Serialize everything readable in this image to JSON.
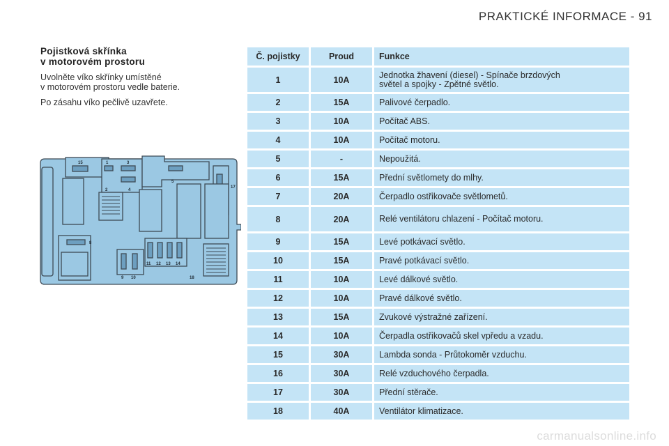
{
  "page": {
    "header": "PRAKTICKÉ INFORMACE - 91"
  },
  "section": {
    "title_line1": "Pojistková skřínka",
    "title_line2": "v motorovém prostoru",
    "para1_line1": "Uvolněte víko skřínky umístěné",
    "para1_line2": "v motorovém prostoru vedle baterie.",
    "para2": "Po zásahu víko pečlivě uzavřete."
  },
  "diagram": {
    "labels": [
      "15",
      "1",
      "3",
      "17",
      "5",
      "2",
      "4",
      "8",
      "11",
      "12",
      "13",
      "14",
      "9",
      "10",
      "18"
    ]
  },
  "table": {
    "headers": [
      "Č. pojistky",
      "Proud",
      "Funkce"
    ],
    "rows": [
      [
        "1",
        "10A",
        "Jednotka žhavení (diesel) - Spínače brzdových",
        "světel a spojky - Zpětné světlo."
      ],
      [
        "2",
        "15A",
        "Palivové čerpadlo."
      ],
      [
        "3",
        "10A",
        "Počítač ABS."
      ],
      [
        "4",
        "10A",
        "Počítač motoru."
      ],
      [
        "5",
        "-",
        "Nepoužitá."
      ],
      [
        "6",
        "15A",
        "Přední světlomety do mlhy."
      ],
      [
        "7",
        "20A",
        "Čerpadlo ostřikovače světlometů."
      ],
      [
        "8",
        "20A",
        "Relé ventilátoru chlazení - Počítač motoru."
      ],
      [
        "9",
        "15A",
        "Levé potkávací světlo."
      ],
      [
        "10",
        "15A",
        "Pravé potkávací světlo."
      ],
      [
        "11",
        "10A",
        "Levé dálkové světlo."
      ],
      [
        "12",
        "10A",
        "Pravé dálkové světlo."
      ],
      [
        "13",
        "15A",
        "Zvukové výstražné zařízení."
      ],
      [
        "14",
        "10A",
        "Čerpadla ostřikovačů skel vpředu a vzadu."
      ],
      [
        "15",
        "30A",
        "Lambda sonda - Průtokoměr vzduchu."
      ],
      [
        "16",
        "30A",
        "Relé vzduchového čerpadla."
      ],
      [
        "17",
        "30A",
        "Přední stěrače."
      ],
      [
        "18",
        "40A",
        "Ventilátor klimatizace."
      ]
    ]
  },
  "footer": {
    "watermark": "carmanualsonline.info"
  }
}
